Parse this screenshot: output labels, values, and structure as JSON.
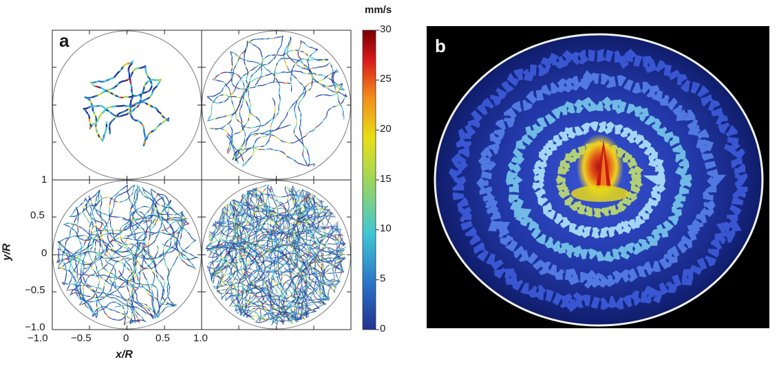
{
  "figure": {
    "panel_a_letter": "a",
    "panel_b_letter": "b",
    "x_axis_title": "x/R",
    "y_axis_title": "y/R",
    "x_ticks": [
      "−1.0",
      "−0.5",
      "0",
      "0.5",
      "1.0"
    ],
    "y_ticks": [
      "1",
      "0.5",
      "0",
      "−0.5",
      "−1.0"
    ],
    "colorbar_unit": "mm/s",
    "colorbar_ticks": [
      "30",
      "25",
      "20",
      "15",
      "10",
      "5",
      "0"
    ],
    "colorbar_colors": [
      "#7a0000",
      "#d9191b",
      "#f28a1c",
      "#e8e014",
      "#9ed65a",
      "#3fc6d4",
      "#2a72c7",
      "#22338f"
    ]
  },
  "chart_data": {
    "type": "scatter",
    "description_free": true,
    "xlim": [
      -1.0,
      1.0
    ],
    "ylim": [
      -1.0,
      1.0
    ],
    "colorbar_range": [
      0,
      30
    ],
    "xlabel": "x/R",
    "ylabel": "y/R",
    "colorbar_label": "mm/s"
  }
}
